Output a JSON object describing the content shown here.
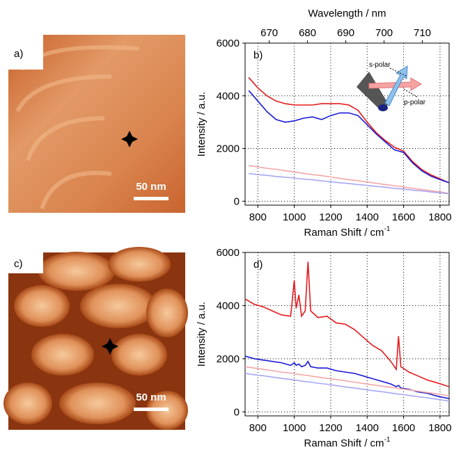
{
  "images": [
    {
      "label": "a)",
      "scale_bar": "50 nm"
    },
    {
      "label": "c)",
      "scale_bar": "50 nm"
    }
  ],
  "chart_data": [
    {
      "type": "line",
      "panel_label": "b)",
      "x_label": "Raman Shift / cm",
      "x_label_sup": "-1",
      "y_label": "Intensity / a.u.",
      "x2_label": "Wavelength / nm",
      "x2lim": [
        663.7,
        717.0
      ],
      "x2ticks": [
        670,
        680,
        690,
        700,
        710
      ],
      "xlim": [
        730,
        1850
      ],
      "xticks": [
        800,
        1000,
        1200,
        1400,
        1600,
        1800
      ],
      "ylim": [
        -150,
        6000
      ],
      "yticks": [
        0,
        2000,
        4000,
        6000
      ],
      "grid": true,
      "annotations": [
        "s-polar",
        "p-polar"
      ],
      "x": [
        750,
        800,
        850,
        900,
        950,
        1000,
        1050,
        1100,
        1150,
        1200,
        1250,
        1300,
        1350,
        1400,
        1450,
        1500,
        1550,
        1600,
        1650,
        1700,
        1750,
        1800,
        1850
      ],
      "series": [
        {
          "color": "#e31a1c",
          "values": [
            4700,
            4300,
            4000,
            3800,
            3700,
            3650,
            3650,
            3650,
            3700,
            3700,
            3700,
            3650,
            3450,
            3000,
            2600,
            2300,
            2050,
            1900,
            1500,
            1200,
            1000,
            850,
            700
          ]
        },
        {
          "color": "#1a1ad6",
          "values": [
            4200,
            3800,
            3400,
            3100,
            3000,
            3050,
            3150,
            3200,
            3100,
            3250,
            3350,
            3350,
            3250,
            2900,
            2550,
            2250,
            1950,
            1850,
            1450,
            1150,
            950,
            820,
            700
          ]
        },
        {
          "color": "#f4a6a6",
          "values": [
            1350,
            1300,
            1250,
            1210,
            1160,
            1110,
            1060,
            1010,
            970,
            920,
            870,
            820,
            780,
            730,
            680,
            630,
            590,
            540,
            490,
            440,
            400,
            350,
            300
          ]
        },
        {
          "color": "#a6a6f4",
          "values": [
            1050,
            1010,
            980,
            940,
            910,
            880,
            840,
            810,
            770,
            740,
            700,
            670,
            630,
            600,
            560,
            530,
            490,
            460,
            420,
            390,
            350,
            320,
            280
          ]
        }
      ]
    },
    {
      "type": "line",
      "panel_label": "d)",
      "x_label": "Raman Shift / cm",
      "x_label_sup": "-1",
      "y_label": "Intensity / a.u.",
      "xlim": [
        730,
        1850
      ],
      "xticks": [
        800,
        1000,
        1200,
        1400,
        1600,
        1800
      ],
      "ylim": [
        -150,
        6000
      ],
      "yticks": [
        0,
        2000,
        4000,
        6000
      ],
      "grid": true,
      "x": [
        730,
        780,
        830,
        880,
        930,
        980,
        1000,
        1010,
        1025,
        1040,
        1060,
        1075,
        1090,
        1130,
        1180,
        1230,
        1280,
        1330,
        1380,
        1430,
        1480,
        1530,
        1560,
        1572,
        1585,
        1630,
        1680,
        1730,
        1780,
        1850
      ],
      "series": [
        {
          "color": "#e31a1c",
          "values": [
            4250,
            4050,
            3950,
            3800,
            3650,
            3600,
            4950,
            3900,
            4400,
            3600,
            3800,
            5650,
            3800,
            3550,
            3600,
            3350,
            3300,
            3100,
            2800,
            2500,
            2300,
            1900,
            1600,
            2850,
            1700,
            1500,
            1350,
            1200,
            1100,
            950
          ]
        },
        {
          "color": "#1a1ad6",
          "values": [
            2100,
            2000,
            1950,
            1900,
            1850,
            1750,
            1850,
            1750,
            1800,
            1700,
            1750,
            1900,
            1700,
            1650,
            1650,
            1550,
            1500,
            1450,
            1350,
            1250,
            1150,
            1050,
            950,
            1000,
            900,
            850,
            750,
            700,
            600,
            500
          ]
        },
        {
          "color": "#f4a6a6",
          "values": [
            1700,
            1650,
            1600,
            1550,
            1500,
            1460,
            1440,
            1430,
            1410,
            1400,
            1380,
            1370,
            1350,
            1310,
            1260,
            1220,
            1170,
            1120,
            1070,
            1020,
            970,
            920,
            900,
            880,
            870,
            830,
            780,
            730,
            680,
            610
          ]
        },
        {
          "color": "#a6a6f4",
          "values": [
            1450,
            1400,
            1360,
            1310,
            1260,
            1220,
            1200,
            1190,
            1180,
            1160,
            1140,
            1130,
            1120,
            1080,
            1040,
            990,
            940,
            900,
            850,
            800,
            760,
            710,
            680,
            670,
            660,
            620,
            570,
            530,
            480,
            410
          ]
        }
      ]
    }
  ]
}
